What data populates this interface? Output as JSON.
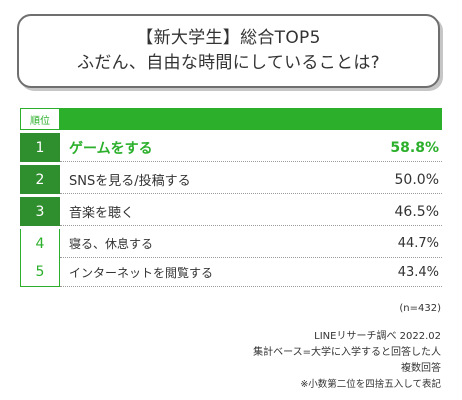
{
  "title": {
    "line1": "【新大学生】総合TOP5",
    "line2": "ふだん、自由な時間にしていることは?"
  },
  "table": {
    "rank_header": "順位"
  },
  "chart_data": {
    "type": "table",
    "columns": [
      "順位",
      "",
      ""
    ],
    "rows": [
      {
        "rank": "1",
        "label": "ゲームをする",
        "value": 58.8,
        "display": "58.8%"
      },
      {
        "rank": "2",
        "label": "SNSを見る/投稿する",
        "value": 50.0,
        "display": "50.0%"
      },
      {
        "rank": "3",
        "label": "音楽を聴く",
        "value": 46.5,
        "display": "46.5%"
      },
      {
        "rank": "4",
        "label": "寝る、休息する",
        "value": 44.7,
        "display": "44.7%"
      },
      {
        "rank": "5",
        "label": "インターネットを閲覧する",
        "value": 43.4,
        "display": "43.4%"
      }
    ]
  },
  "notes": {
    "n": "(n=432)",
    "source": "LINEリサーチ調べ 2022.02",
    "base": "集計ベース=大学に入学すると回答した人",
    "answer": "複数回答",
    "rounding": "※小数第二位を四捨五入して表記"
  },
  "colors": {
    "accent_green": "#2cb02c",
    "dark_green": "#2f8f2f",
    "border_gray": "#6f6f6f"
  }
}
